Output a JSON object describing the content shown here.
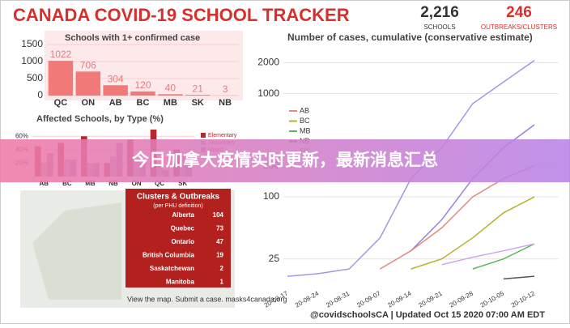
{
  "header": {
    "title": "CANADA COVID-19 SCHOOL TRACKER",
    "stats": [
      {
        "value": "2,216",
        "label": "SCHOOLS"
      },
      {
        "value": "246",
        "label": "OUTBREAKS/CLUSTERS"
      }
    ]
  },
  "banner": "今日加拿大疫情实时更新，最新消息汇总",
  "chart_data": [
    {
      "type": "bar",
      "title": "Schools with 1+ confirmed case",
      "categories": [
        "QC",
        "ON",
        "AB",
        "BC",
        "MB",
        "SK",
        "NB"
      ],
      "values": [
        1022,
        706,
        304,
        120,
        40,
        21,
        3
      ],
      "color": "#f17a78",
      "ylim": [
        0,
        1500
      ],
      "yticks": [
        0,
        500,
        1000,
        1500
      ]
    },
    {
      "type": "bar",
      "title": "Affected Schools, by Type (%)",
      "categories": [
        "AB",
        "BC",
        "MB",
        "NB",
        "ON",
        "QC",
        "SK"
      ],
      "series": [
        {
          "name": "Elementary",
          "color": "#b22a2a",
          "values": [
            45,
            50,
            60,
            20,
            55,
            70,
            40
          ]
        },
        {
          "name": "Secondary",
          "color": "#a9b8d0",
          "values": [
            20,
            25,
            20,
            30,
            25,
            20,
            30
          ]
        },
        {
          "name": "Mixed",
          "color": "#a47fa8",
          "values": [
            35,
            25,
            20,
            50,
            20,
            10,
            30
          ]
        }
      ],
      "ylim": [
        0,
        70
      ],
      "yticks": [
        {
          "value": 20,
          "label": "20%"
        },
        {
          "value": 40,
          "label": "40%"
        },
        {
          "value": 60,
          "label": "60%"
        }
      ]
    },
    {
      "type": "line",
      "title": "Number of cases, cumulative (conservative estimate)",
      "categories": [
        "20-08-17",
        "20-08-24",
        "20-08-31",
        "20-09-07",
        "20-09-14",
        "20-09-21",
        "20-09-28",
        "20-10-05",
        "20-10-12"
      ],
      "series": [
        {
          "color": "#a395e6",
          "values": [
            17,
            18,
            20,
            40,
            150,
            300,
            800,
            1300,
            2100
          ]
        },
        {
          "color": "#9b7fd8",
          "values": [
            null,
            null,
            null,
            null,
            30,
            60,
            150,
            300,
            500
          ]
        },
        {
          "name": "AB",
          "color": "#e08a84",
          "values": [
            null,
            null,
            null,
            20,
            30,
            50,
            100,
            150,
            200
          ]
        },
        {
          "name": "BC",
          "color": "#b7b22a",
          "values": [
            null,
            null,
            null,
            null,
            20,
            25,
            40,
            70,
            100
          ]
        },
        {
          "name": "MB",
          "color": "#5cb85c",
          "values": [
            null,
            null,
            null,
            null,
            null,
            null,
            20,
            25,
            35
          ]
        },
        {
          "name": "NB",
          "color": "#555555",
          "values": [
            null,
            null,
            null,
            null,
            null,
            null,
            null,
            16,
            17
          ]
        },
        {
          "name": "SK",
          "color": "#d0a6ec",
          "values": [
            null,
            null,
            null,
            null,
            null,
            22,
            26,
            30,
            35
          ]
        }
      ],
      "yscale": "log",
      "ylim": [
        15,
        2500
      ],
      "yticks": [
        25,
        100,
        200,
        1000,
        2000
      ]
    }
  ],
  "map_panel": {
    "title": "Clusters & Outbreaks",
    "subtitle": "(per PHU definition)",
    "rows": [
      [
        "Alberta",
        "104"
      ],
      [
        "Quebec",
        "73"
      ],
      [
        "Ontario",
        "47"
      ],
      [
        "British Columbia",
        "19"
      ],
      [
        "Saskatchewan",
        "2"
      ],
      [
        "Manitoba",
        "1"
      ]
    ],
    "caption": "View the map. Submit a case. masks4canada.org"
  },
  "footer": "@covidschoolsCA | Updated Oct 15 2020 07:00 AM EDT"
}
